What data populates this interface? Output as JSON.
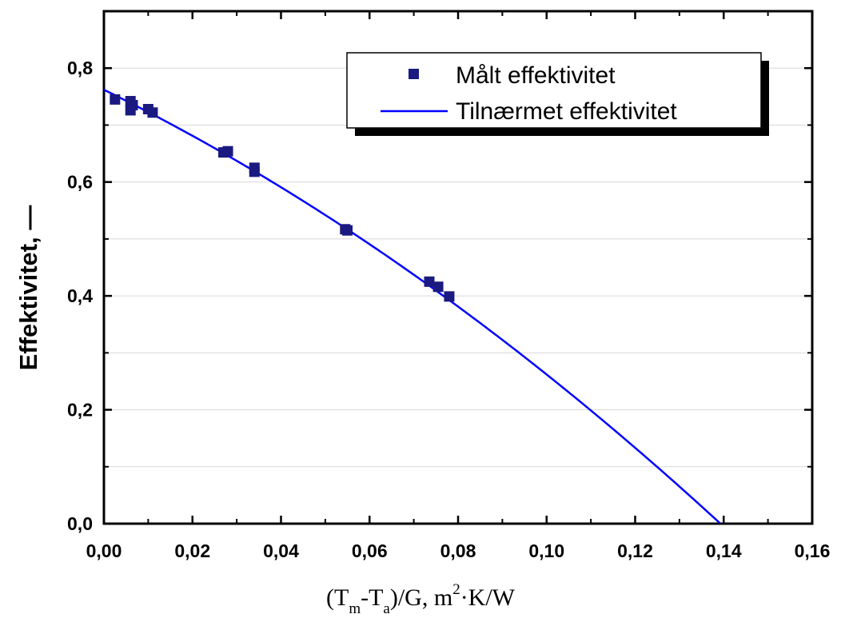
{
  "chart_data": {
    "type": "scatter",
    "xlim": [
      0,
      0.16
    ],
    "ylim": [
      0,
      0.9
    ],
    "x_ticks": [
      "0,00",
      "0,02",
      "0,04",
      "0,06",
      "0,08",
      "0,10",
      "0,12",
      "0,14",
      "0,16"
    ],
    "y_ticks": [
      "0,0",
      "0,2",
      "0,4",
      "0,6",
      "0,8"
    ],
    "x_tick_values": [
      0,
      0.02,
      0.04,
      0.06,
      0.08,
      0.1,
      0.12,
      0.14,
      0.16
    ],
    "y_tick_values": [
      0,
      0.2,
      0.4,
      0.6,
      0.8
    ],
    "grid": "horizontal",
    "ylabel": "Effektivitet, —",
    "xlabel": {
      "parts": [
        "(T",
        "m",
        "-T",
        "a",
        ")/G,  m",
        "2",
        "·K/W"
      ]
    },
    "legend_position": "top-right",
    "series": [
      {
        "name": "Målt effektivitet",
        "type": "scatter",
        "marker": "square",
        "color": "#1a1a80",
        "points": [
          [
            0.0025,
            0.745
          ],
          [
            0.006,
            0.742
          ],
          [
            0.0065,
            0.735
          ],
          [
            0.006,
            0.726
          ],
          [
            0.01,
            0.728
          ],
          [
            0.011,
            0.722
          ],
          [
            0.027,
            0.652
          ],
          [
            0.028,
            0.654
          ],
          [
            0.034,
            0.625
          ],
          [
            0.034,
            0.618
          ],
          [
            0.0545,
            0.517
          ],
          [
            0.055,
            0.515
          ],
          [
            0.0735,
            0.425
          ],
          [
            0.0755,
            0.416
          ],
          [
            0.078,
            0.399
          ]
        ]
      },
      {
        "name": "Tilnærmet effektivitet",
        "type": "line",
        "color": "#0000ff",
        "coefficients": {
          "eta0": 0.762,
          "a1": 3.8,
          "a2": 12.0
        },
        "x_range": [
          0,
          0.1392
        ]
      }
    ]
  }
}
